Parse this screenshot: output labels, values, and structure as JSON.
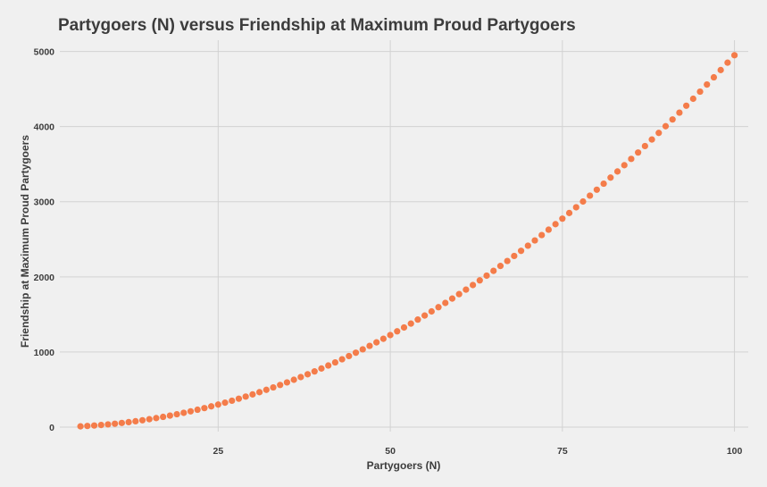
{
  "chart_data": {
    "type": "scatter",
    "title": "Partygoers (N) versus Friendship at Maximum Proud Partygoers",
    "xlabel": "Partygoers (N)",
    "ylabel": "Friendship at Maximum Proud Partygoers",
    "xlim": [
      2,
      102
    ],
    "ylim": [
      -60,
      5150
    ],
    "xticks": [
      25,
      50,
      75,
      100
    ],
    "yticks": [
      0,
      1000,
      2000,
      3000,
      4000,
      5000
    ],
    "grid": true,
    "legend": "none",
    "point_color": "#f47c4a",
    "background": "#f0f0f0",
    "series": [
      {
        "x": [
          5,
          6,
          7,
          8,
          9,
          10,
          11,
          12,
          13,
          14,
          15,
          16,
          17,
          18,
          19,
          20,
          21,
          22,
          23,
          24,
          25,
          26,
          27,
          28,
          29,
          30,
          31,
          32,
          33,
          34,
          35,
          36,
          37,
          38,
          39,
          40,
          41,
          42,
          43,
          44,
          45,
          46,
          47,
          48,
          49,
          50,
          51,
          52,
          53,
          54,
          55,
          56,
          57,
          58,
          59,
          60,
          61,
          62,
          63,
          64,
          65,
          66,
          67,
          68,
          69,
          70,
          71,
          72,
          73,
          74,
          75,
          76,
          77,
          78,
          79,
          80,
          81,
          82,
          83,
          84,
          85,
          86,
          87,
          88,
          89,
          90,
          91,
          92,
          93,
          94,
          95,
          96,
          97,
          98,
          99,
          100
        ],
        "y": [
          10,
          15,
          21,
          28,
          36,
          45,
          55,
          66,
          78,
          91,
          105,
          120,
          136,
          153,
          171,
          190,
          210,
          231,
          253,
          276,
          300,
          325,
          351,
          378,
          406,
          435,
          465,
          496,
          528,
          561,
          595,
          630,
          666,
          703,
          741,
          780,
          820,
          861,
          903,
          946,
          990,
          1035,
          1081,
          1128,
          1176,
          1225,
          1275,
          1326,
          1378,
          1431,
          1485,
          1540,
          1596,
          1653,
          1711,
          1770,
          1830,
          1891,
          1953,
          2016,
          2080,
          2145,
          2211,
          2278,
          2346,
          2415,
          2485,
          2556,
          2628,
          2701,
          2775,
          2850,
          2926,
          3003,
          3081,
          3160,
          3240,
          3321,
          3403,
          3486,
          3570,
          3655,
          3741,
          3828,
          3916,
          4005,
          4095,
          4186,
          4278,
          4371,
          4465,
          4560,
          4656,
          4753,
          4851,
          4950
        ]
      }
    ]
  }
}
